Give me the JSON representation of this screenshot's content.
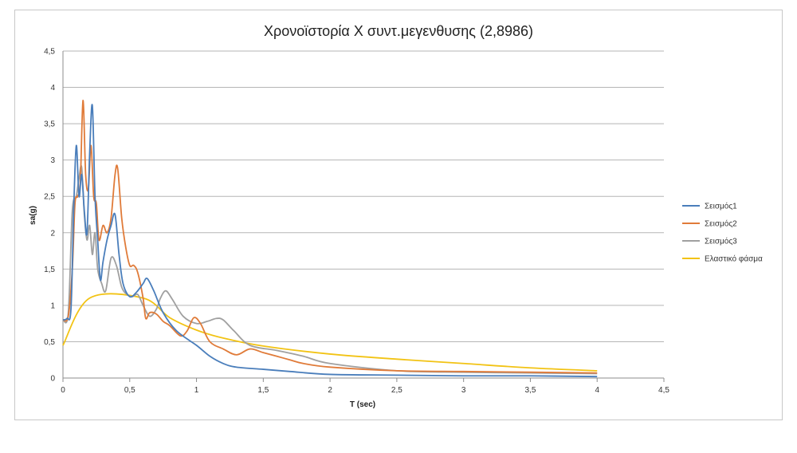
{
  "chart_data": {
    "type": "line",
    "title": "Χρονοϊστορία Χ συντ.μεγενθυσης (2,8986)",
    "xlabel": "T (sec)",
    "ylabel": "sa(g)",
    "xlim": [
      0,
      4.5
    ],
    "ylim": [
      0,
      4.5
    ],
    "xticks": [
      "0",
      "0,5",
      "1",
      "1,5",
      "2",
      "2,5",
      "3",
      "3,5",
      "4",
      "4,5"
    ],
    "yticks": [
      "0",
      "0,5",
      "1",
      "1,5",
      "2",
      "2,5",
      "3",
      "3,5",
      "4",
      "4,5"
    ],
    "grid": "horizontal",
    "legend_position": "right",
    "series": [
      {
        "name": "Σεισμός1",
        "color": "#4a7ebb",
        "points": [
          [
            0,
            0.8
          ],
          [
            0.03,
            0.82
          ],
          [
            0.06,
            0.95
          ],
          [
            0.08,
            2.3
          ],
          [
            0.1,
            3.2
          ],
          [
            0.12,
            2.5
          ],
          [
            0.14,
            2.8
          ],
          [
            0.16,
            2.3
          ],
          [
            0.18,
            2.0
          ],
          [
            0.2,
            3.1
          ],
          [
            0.22,
            3.75
          ],
          [
            0.24,
            2.5
          ],
          [
            0.26,
            1.9
          ],
          [
            0.28,
            1.35
          ],
          [
            0.3,
            1.6
          ],
          [
            0.33,
            1.9
          ],
          [
            0.36,
            2.1
          ],
          [
            0.39,
            2.25
          ],
          [
            0.42,
            1.7
          ],
          [
            0.45,
            1.3
          ],
          [
            0.5,
            1.12
          ],
          [
            0.55,
            1.18
          ],
          [
            0.6,
            1.3
          ],
          [
            0.63,
            1.37
          ],
          [
            0.68,
            1.2
          ],
          [
            0.75,
            0.9
          ],
          [
            0.85,
            0.65
          ],
          [
            1.0,
            0.45
          ],
          [
            1.1,
            0.3
          ],
          [
            1.2,
            0.2
          ],
          [
            1.3,
            0.15
          ],
          [
            1.5,
            0.12
          ],
          [
            1.7,
            0.09
          ],
          [
            2.0,
            0.05
          ],
          [
            2.5,
            0.04
          ],
          [
            3.0,
            0.03
          ],
          [
            3.5,
            0.03
          ],
          [
            4.0,
            0.02
          ]
        ]
      },
      {
        "name": "Σεισμός2",
        "color": "#e07b39",
        "points": [
          [
            0,
            0.8
          ],
          [
            0.04,
            0.85
          ],
          [
            0.07,
            1.5
          ],
          [
            0.09,
            2.4
          ],
          [
            0.11,
            2.5
          ],
          [
            0.13,
            2.7
          ],
          [
            0.15,
            3.82
          ],
          [
            0.17,
            2.8
          ],
          [
            0.19,
            2.6
          ],
          [
            0.21,
            3.2
          ],
          [
            0.23,
            2.5
          ],
          [
            0.25,
            2.4
          ],
          [
            0.27,
            1.9
          ],
          [
            0.3,
            2.1
          ],
          [
            0.33,
            2.0
          ],
          [
            0.36,
            2.2
          ],
          [
            0.39,
            2.8
          ],
          [
            0.41,
            2.88
          ],
          [
            0.44,
            2.2
          ],
          [
            0.47,
            1.8
          ],
          [
            0.5,
            1.55
          ],
          [
            0.53,
            1.55
          ],
          [
            0.56,
            1.45
          ],
          [
            0.6,
            1.1
          ],
          [
            0.62,
            0.82
          ],
          [
            0.65,
            0.9
          ],
          [
            0.7,
            0.88
          ],
          [
            0.75,
            0.78
          ],
          [
            0.8,
            0.72
          ],
          [
            0.88,
            0.58
          ],
          [
            0.93,
            0.65
          ],
          [
            0.98,
            0.83
          ],
          [
            1.03,
            0.75
          ],
          [
            1.1,
            0.5
          ],
          [
            1.2,
            0.4
          ],
          [
            1.3,
            0.32
          ],
          [
            1.4,
            0.4
          ],
          [
            1.5,
            0.35
          ],
          [
            1.6,
            0.3
          ],
          [
            1.7,
            0.25
          ],
          [
            1.8,
            0.2
          ],
          [
            2.0,
            0.15
          ],
          [
            2.5,
            0.1
          ],
          [
            3.0,
            0.09
          ],
          [
            3.5,
            0.08
          ],
          [
            4.0,
            0.07
          ]
        ]
      },
      {
        "name": "Σεισμός3",
        "color": "#a0a0a0",
        "points": [
          [
            0,
            0.8
          ],
          [
            0.04,
            0.9
          ],
          [
            0.07,
            2.3
          ],
          [
            0.1,
            2.5
          ],
          [
            0.12,
            2.75
          ],
          [
            0.14,
            2.9
          ],
          [
            0.16,
            2.25
          ],
          [
            0.18,
            1.9
          ],
          [
            0.2,
            2.1
          ],
          [
            0.22,
            1.7
          ],
          [
            0.24,
            2.0
          ],
          [
            0.26,
            1.5
          ],
          [
            0.29,
            1.3
          ],
          [
            0.32,
            1.2
          ],
          [
            0.36,
            1.65
          ],
          [
            0.4,
            1.55
          ],
          [
            0.44,
            1.25
          ],
          [
            0.48,
            1.15
          ],
          [
            0.52,
            1.12
          ],
          [
            0.56,
            1.15
          ],
          [
            0.6,
            1.0
          ],
          [
            0.65,
            0.85
          ],
          [
            0.7,
            0.95
          ],
          [
            0.73,
            1.1
          ],
          [
            0.77,
            1.2
          ],
          [
            0.82,
            1.08
          ],
          [
            0.9,
            0.85
          ],
          [
            1.0,
            0.75
          ],
          [
            1.08,
            0.78
          ],
          [
            1.15,
            0.82
          ],
          [
            1.2,
            0.8
          ],
          [
            1.28,
            0.65
          ],
          [
            1.4,
            0.45
          ],
          [
            1.6,
            0.38
          ],
          [
            1.8,
            0.3
          ],
          [
            2.0,
            0.2
          ],
          [
            2.5,
            0.1
          ],
          [
            3.0,
            0.08
          ],
          [
            3.5,
            0.07
          ],
          [
            4.0,
            0.06
          ]
        ]
      },
      {
        "name": "Ελαστικό φάσμα",
        "color": "#f2c314",
        "points": [
          [
            0,
            0.45
          ],
          [
            0.2,
            1.1
          ],
          [
            0.6,
            1.1
          ],
          [
            0.8,
            0.83
          ],
          [
            1.0,
            0.66
          ],
          [
            1.2,
            0.55
          ],
          [
            1.5,
            0.44
          ],
          [
            2.0,
            0.33
          ],
          [
            2.5,
            0.26
          ],
          [
            3.0,
            0.2
          ],
          [
            3.5,
            0.14
          ],
          [
            4.0,
            0.1
          ]
        ]
      }
    ]
  }
}
